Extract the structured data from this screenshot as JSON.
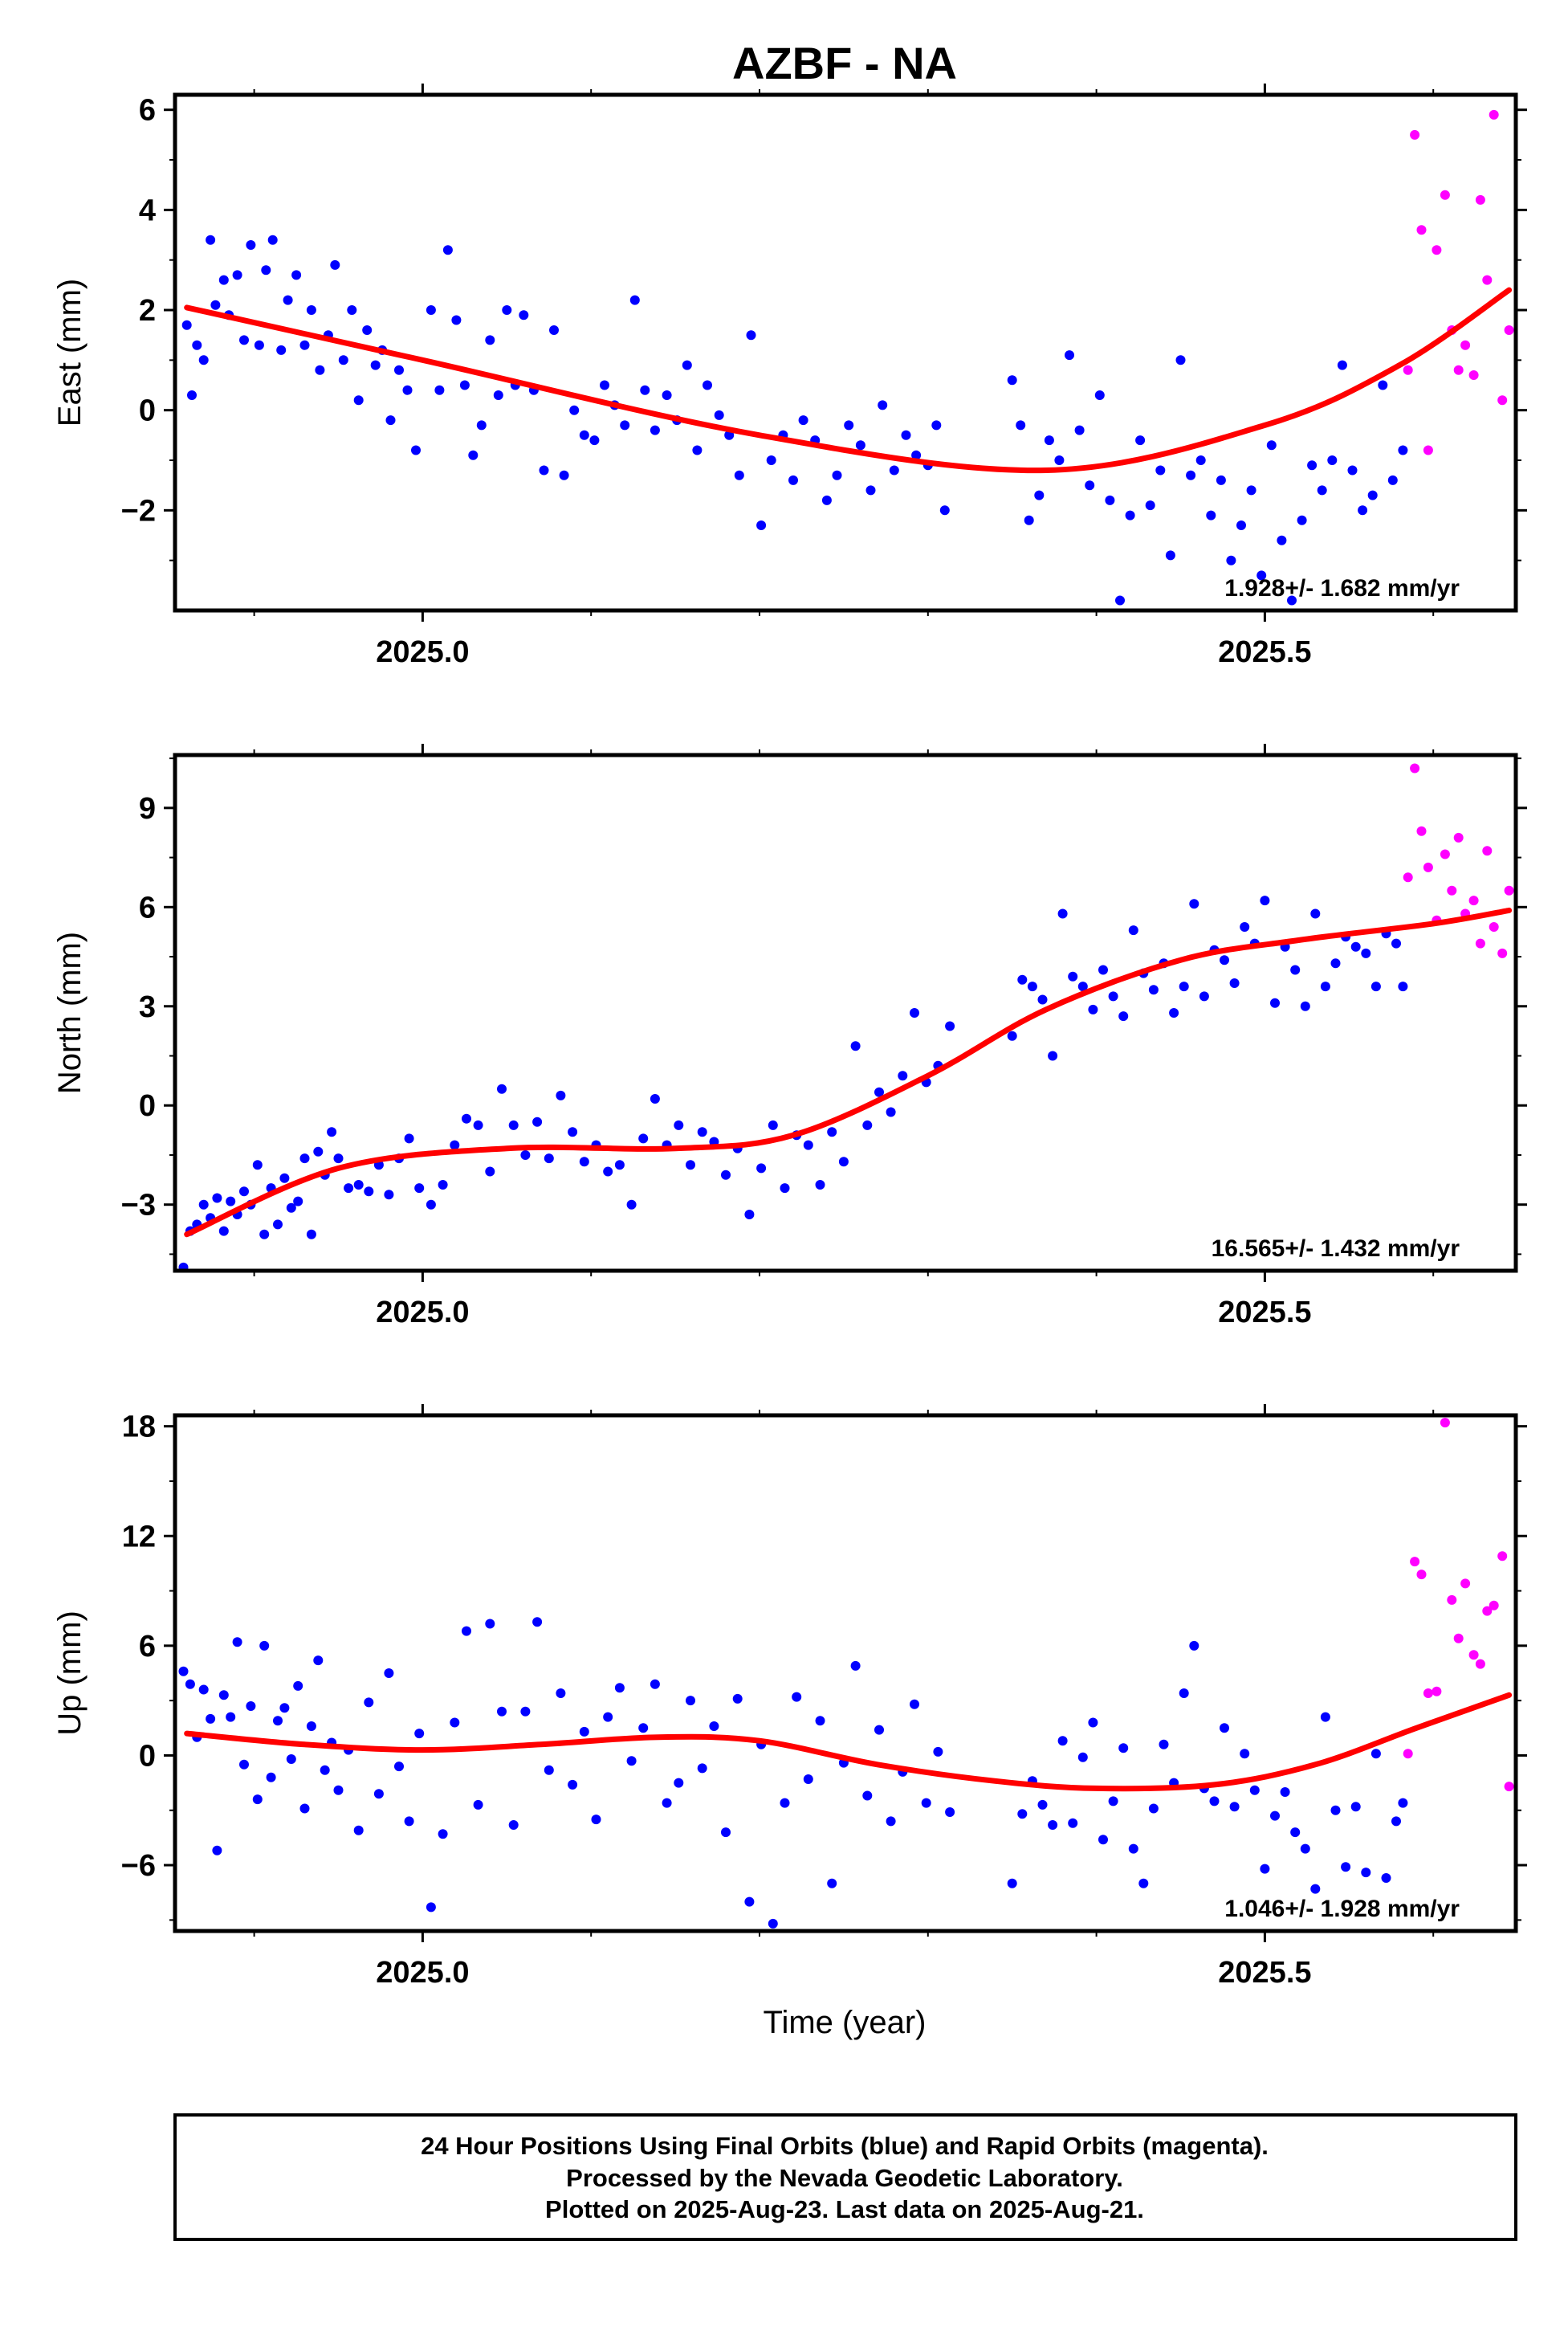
{
  "title": "AZBF - NA",
  "x_label": "Time (year)",
  "footer": {
    "line1": "24 Hour Positions Using Final Orbits (blue) and Rapid Orbits (magenta).",
    "line2": "Processed by the Nevada Geodetic Laboratory.",
    "line3": "Plotted on 2025-Aug-23. Last data on 2025-Aug-21."
  },
  "colors": {
    "final": "#0000ff",
    "rapid": "#ff00ff",
    "fit": "#ff0000",
    "frame": "#000000"
  },
  "chart_data": [
    {
      "type": "scatter",
      "ylabel": "East (mm)",
      "xlim": [
        2024.853,
        2025.649
      ],
      "ylim": [
        -4.0,
        6.3
      ],
      "xticks": [
        2025.0,
        2025.5
      ],
      "xtick_labels": [
        "2025.0",
        "2025.5"
      ],
      "yticks": [
        -2,
        0,
        2,
        4,
        6
      ],
      "ytick_labels": [
        "−2",
        "0",
        "2",
        "4",
        "6"
      ],
      "rate_label": "1.928+/- 1.682 mm/yr",
      "fit": {
        "x": [
          2024.86,
          2025.0,
          2025.2,
          2025.37,
          2025.5,
          2025.58,
          2025.645
        ],
        "y": [
          2.05,
          1.0,
          -0.5,
          -1.2,
          -0.3,
          0.9,
          2.4
        ]
      },
      "series": [
        {
          "orbit": "final",
          "x": [
            2024.86,
            2024.863,
            2024.866,
            2024.87,
            2024.874,
            2024.877,
            2024.882,
            2024.885,
            2024.89,
            2024.894,
            2024.898,
            2024.903,
            2024.907,
            2024.911,
            2024.916,
            2024.92,
            2024.925,
            2024.93,
            2024.934,
            2024.939,
            2024.944,
            2024.948,
            2024.953,
            2024.958,
            2024.962,
            2024.967,
            2024.972,
            2024.976,
            2024.981,
            2024.986,
            2024.991,
            2024.996,
            2025.005,
            2025.01,
            2025.015,
            2025.02,
            2025.025,
            2025.03,
            2025.035,
            2025.04,
            2025.045,
            2025.05,
            2025.055,
            2025.06,
            2025.066,
            2025.072,
            2025.078,
            2025.084,
            2025.09,
            2025.096,
            2025.102,
            2025.108,
            2025.114,
            2025.12,
            2025.126,
            2025.132,
            2025.138,
            2025.145,
            2025.151,
            2025.157,
            2025.163,
            2025.169,
            2025.176,
            2025.182,
            2025.188,
            2025.195,
            2025.201,
            2025.207,
            2025.214,
            2025.22,
            2025.226,
            2025.233,
            2025.24,
            2025.246,
            2025.253,
            2025.26,
            2025.266,
            2025.273,
            2025.28,
            2025.287,
            2025.293,
            2025.3,
            2025.305,
            2025.31,
            2025.35,
            2025.355,
            2025.36,
            2025.366,
            2025.372,
            2025.378,
            2025.384,
            2025.39,
            2025.396,
            2025.402,
            2025.408,
            2025.414,
            2025.42,
            2025.426,
            2025.432,
            2025.438,
            2025.444,
            2025.45,
            2025.456,
            2025.462,
            2025.468,
            2025.474,
            2025.48,
            2025.486,
            2025.492,
            2025.498,
            2025.504,
            2025.51,
            2025.516,
            2025.522,
            2025.528,
            2025.534,
            2025.54,
            2025.546,
            2025.552,
            2025.558,
            2025.564,
            2025.57,
            2025.576,
            2025.582
          ],
          "y": [
            1.7,
            0.3,
            1.3,
            1.0,
            3.4,
            2.1,
            2.6,
            1.9,
            2.7,
            1.4,
            3.3,
            1.3,
            2.8,
            3.4,
            1.2,
            2.2,
            2.7,
            1.3,
            2.0,
            0.8,
            1.5,
            2.9,
            1.0,
            2.0,
            0.2,
            1.6,
            0.9,
            1.2,
            -0.2,
            0.8,
            0.4,
            -0.8,
            2.0,
            0.4,
            3.2,
            1.8,
            0.5,
            -0.9,
            -0.3,
            1.4,
            0.3,
            2.0,
            0.5,
            1.9,
            0.4,
            -1.2,
            1.6,
            -1.3,
            0.0,
            -0.5,
            -0.6,
            0.5,
            0.1,
            -0.3,
            2.2,
            0.4,
            -0.4,
            0.3,
            -0.2,
            0.9,
            -0.8,
            0.5,
            -0.1,
            -0.5,
            -1.3,
            1.5,
            -2.3,
            -1.0,
            -0.5,
            -1.4,
            -0.2,
            -0.6,
            -1.8,
            -1.3,
            -0.3,
            -0.7,
            -1.6,
            0.1,
            -1.2,
            -0.5,
            -0.9,
            -1.1,
            -0.3,
            -2.0,
            0.6,
            -0.3,
            -2.2,
            -1.7,
            -0.6,
            -1.0,
            1.1,
            -0.4,
            -1.5,
            0.3,
            -1.8,
            -3.8,
            -2.1,
            -0.6,
            -1.9,
            -1.2,
            -2.9,
            1.0,
            -1.3,
            -1.0,
            -2.1,
            -1.4,
            -3.0,
            -2.3,
            -1.6,
            -3.3,
            -0.7,
            -2.6,
            -3.8,
            -2.2,
            -1.1,
            -1.6,
            -1.0,
            0.9,
            -1.2,
            -2.0,
            -1.7,
            0.5,
            -1.4,
            -0.8
          ]
        },
        {
          "orbit": "rapid",
          "x": [
            2025.585,
            2025.589,
            2025.593,
            2025.597,
            2025.602,
            2025.607,
            2025.611,
            2025.615,
            2025.619,
            2025.624,
            2025.628,
            2025.632,
            2025.636,
            2025.641,
            2025.645
          ],
          "y": [
            0.8,
            5.5,
            3.6,
            -0.8,
            3.2,
            4.3,
            1.6,
            0.8,
            1.3,
            0.7,
            4.2,
            2.6,
            5.9,
            0.2,
            1.6
          ]
        }
      ]
    },
    {
      "type": "scatter",
      "ylabel": "North (mm)",
      "xlim": [
        2024.853,
        2025.649
      ],
      "ylim": [
        -5.0,
        10.6
      ],
      "xticks": [
        2025.0,
        2025.5
      ],
      "xtick_labels": [
        "2025.0",
        "2025.5"
      ],
      "yticks": [
        -3,
        0,
        3,
        6,
        9
      ],
      "ytick_labels": [
        "−3",
        "0",
        "3",
        "6",
        "9"
      ],
      "rate_label": "16.565+/- 1.432 mm/yr",
      "fit": {
        "x": [
          2024.86,
          2024.95,
          2025.05,
          2025.15,
          2025.22,
          2025.3,
          2025.37,
          2025.45,
          2025.52,
          2025.6,
          2025.645
        ],
        "y": [
          -3.9,
          -1.9,
          -1.3,
          -1.3,
          -0.9,
          0.9,
          2.9,
          4.4,
          5.0,
          5.5,
          5.9
        ]
      },
      "series": [
        {
          "orbit": "final",
          "x": [
            2024.858,
            2024.862,
            2024.866,
            2024.87,
            2024.874,
            2024.878,
            2024.882,
            2024.886,
            2024.89,
            2024.894,
            2024.898,
            2024.902,
            2024.906,
            2024.91,
            2024.914,
            2024.918,
            2024.922,
            2024.926,
            2024.93,
            2024.934,
            2024.938,
            2024.942,
            2024.946,
            2024.95,
            2024.956,
            2024.962,
            2024.968,
            2024.974,
            2024.98,
            2024.986,
            2024.992,
            2024.998,
            2025.005,
            2025.012,
            2025.019,
            2025.026,
            2025.033,
            2025.04,
            2025.047,
            2025.054,
            2025.061,
            2025.068,
            2025.075,
            2025.082,
            2025.089,
            2025.096,
            2025.103,
            2025.11,
            2025.117,
            2025.124,
            2025.131,
            2025.138,
            2025.145,
            2025.152,
            2025.159,
            2025.166,
            2025.173,
            2025.18,
            2025.187,
            2025.194,
            2025.201,
            2025.208,
            2025.215,
            2025.222,
            2025.229,
            2025.236,
            2025.243,
            2025.25,
            2025.257,
            2025.264,
            2025.271,
            2025.278,
            2025.285,
            2025.292,
            2025.299,
            2025.306,
            2025.313,
            2025.35,
            2025.356,
            2025.362,
            2025.368,
            2025.374,
            2025.38,
            2025.386,
            2025.392,
            2025.398,
            2025.404,
            2025.41,
            2025.416,
            2025.422,
            2025.428,
            2025.434,
            2025.44,
            2025.446,
            2025.452,
            2025.458,
            2025.464,
            2025.47,
            2025.476,
            2025.482,
            2025.488,
            2025.494,
            2025.5,
            2025.506,
            2025.512,
            2025.518,
            2025.524,
            2025.53,
            2025.536,
            2025.542,
            2025.548,
            2025.554,
            2025.56,
            2025.566,
            2025.572,
            2025.578,
            2025.582
          ],
          "y": [
            -4.9,
            -3.8,
            -3.6,
            -3.0,
            -3.4,
            -2.8,
            -3.8,
            -2.9,
            -3.3,
            -2.6,
            -3.0,
            -1.8,
            -3.9,
            -2.5,
            -3.6,
            -2.2,
            -3.1,
            -2.9,
            -1.6,
            -3.9,
            -1.4,
            -2.1,
            -0.8,
            -1.6,
            -2.5,
            -2.4,
            -2.6,
            -1.8,
            -2.7,
            -1.6,
            -1.0,
            -2.5,
            -3.0,
            -2.4,
            -1.2,
            -0.4,
            -0.6,
            -2.0,
            0.5,
            -0.6,
            -1.5,
            -0.5,
            -1.6,
            0.3,
            -0.8,
            -1.7,
            -1.2,
            -2.0,
            -1.8,
            -3.0,
            -1.0,
            0.2,
            -1.2,
            -0.6,
            -1.8,
            -0.8,
            -1.1,
            -2.1,
            -1.3,
            -3.3,
            -1.9,
            -0.6,
            -2.5,
            -0.9,
            -1.2,
            -2.4,
            -0.8,
            -1.7,
            1.8,
            -0.6,
            0.4,
            -0.2,
            0.9,
            2.8,
            0.7,
            1.2,
            2.4,
            2.1,
            3.8,
            3.6,
            3.2,
            1.5,
            5.8,
            3.9,
            3.6,
            2.9,
            4.1,
            3.3,
            2.7,
            5.3,
            4.0,
            3.5,
            4.3,
            2.8,
            3.6,
            6.1,
            3.3,
            4.7,
            4.4,
            3.7,
            5.4,
            4.9,
            6.2,
            3.1,
            4.8,
            4.1,
            3.0,
            5.8,
            3.6,
            4.3,
            5.1,
            4.8,
            4.6,
            3.6,
            5.2,
            4.9,
            3.6
          ]
        },
        {
          "orbit": "rapid",
          "x": [
            2025.585,
            2025.589,
            2025.593,
            2025.597,
            2025.602,
            2025.607,
            2025.611,
            2025.615,
            2025.619,
            2025.624,
            2025.628,
            2025.632,
            2025.636,
            2025.641,
            2025.645
          ],
          "y": [
            6.9,
            10.2,
            8.3,
            7.2,
            5.6,
            7.6,
            6.5,
            8.1,
            5.8,
            6.2,
            4.9,
            7.7,
            5.4,
            4.6,
            6.5
          ]
        }
      ]
    },
    {
      "type": "scatter",
      "ylabel": "Up (mm)",
      "xlim": [
        2024.853,
        2025.649
      ],
      "ylim": [
        -9.6,
        18.6
      ],
      "xticks": [
        2025.0,
        2025.5
      ],
      "xtick_labels": [
        "2025.0",
        "2025.5"
      ],
      "yticks": [
        -6,
        0,
        6,
        12,
        18
      ],
      "ytick_labels": [
        "−6",
        "0",
        "6",
        "12",
        "18"
      ],
      "rate_label": "1.046+/- 1.928 mm/yr",
      "fit": {
        "x": [
          2024.86,
          2024.93,
          2025.0,
          2025.07,
          2025.14,
          2025.2,
          2025.27,
          2025.34,
          2025.4,
          2025.47,
          2025.53,
          2025.59,
          2025.645
        ],
        "y": [
          1.2,
          0.6,
          0.3,
          0.6,
          1.0,
          0.8,
          -0.5,
          -1.4,
          -1.8,
          -1.6,
          -0.5,
          1.5,
          3.3
        ]
      },
      "series": [
        {
          "orbit": "final",
          "x": [
            2024.858,
            2024.862,
            2024.866,
            2024.87,
            2024.874,
            2024.878,
            2024.882,
            2024.886,
            2024.89,
            2024.894,
            2024.898,
            2024.902,
            2024.906,
            2024.91,
            2024.914,
            2024.918,
            2024.922,
            2024.926,
            2024.93,
            2024.934,
            2024.938,
            2024.942,
            2024.946,
            2024.95,
            2024.956,
            2024.962,
            2024.968,
            2024.974,
            2024.98,
            2024.986,
            2024.992,
            2024.998,
            2025.005,
            2025.012,
            2025.019,
            2025.026,
            2025.033,
            2025.04,
            2025.047,
            2025.054,
            2025.061,
            2025.068,
            2025.075,
            2025.082,
            2025.089,
            2025.096,
            2025.103,
            2025.11,
            2025.117,
            2025.124,
            2025.131,
            2025.138,
            2025.145,
            2025.152,
            2025.159,
            2025.166,
            2025.173,
            2025.18,
            2025.187,
            2025.194,
            2025.201,
            2025.208,
            2025.215,
            2025.222,
            2025.229,
            2025.236,
            2025.243,
            2025.25,
            2025.257,
            2025.264,
            2025.271,
            2025.278,
            2025.285,
            2025.292,
            2025.299,
            2025.306,
            2025.313,
            2025.35,
            2025.356,
            2025.362,
            2025.368,
            2025.374,
            2025.38,
            2025.386,
            2025.392,
            2025.398,
            2025.404,
            2025.41,
            2025.416,
            2025.422,
            2025.428,
            2025.434,
            2025.44,
            2025.446,
            2025.452,
            2025.458,
            2025.464,
            2025.47,
            2025.476,
            2025.482,
            2025.488,
            2025.494,
            2025.5,
            2025.506,
            2025.512,
            2025.518,
            2025.524,
            2025.53,
            2025.536,
            2025.542,
            2025.548,
            2025.554,
            2025.56,
            2025.566,
            2025.572,
            2025.578,
            2025.582
          ],
          "y": [
            4.6,
            3.9,
            1.0,
            3.6,
            2.0,
            -5.2,
            3.3,
            2.1,
            6.2,
            -0.5,
            2.7,
            -2.4,
            6.0,
            -1.2,
            1.9,
            2.6,
            -0.2,
            3.8,
            -2.9,
            1.6,
            5.2,
            -0.8,
            0.7,
            -1.9,
            0.3,
            -4.1,
            2.9,
            -2.1,
            4.5,
            -0.6,
            -3.6,
            1.2,
            -8.3,
            -4.3,
            1.8,
            6.8,
            -2.7,
            7.2,
            2.4,
            -3.8,
            2.4,
            7.3,
            -0.8,
            3.4,
            -1.6,
            1.3,
            -3.5,
            2.1,
            3.7,
            -0.3,
            1.5,
            3.9,
            -2.6,
            -1.5,
            3.0,
            -0.7,
            1.6,
            -4.2,
            3.1,
            -8.0,
            0.6,
            -9.2,
            -2.6,
            3.2,
            -1.3,
            1.9,
            -7.0,
            -0.4,
            4.9,
            -2.2,
            1.4,
            -3.6,
            -0.9,
            2.8,
            -2.6,
            0.2,
            -3.1,
            -7.0,
            -3.2,
            -1.4,
            -2.7,
            -3.8,
            0.8,
            -3.7,
            -0.1,
            1.8,
            -4.6,
            -2.5,
            0.4,
            -5.1,
            -7.0,
            -2.9,
            0.6,
            -1.5,
            3.4,
            6.0,
            -1.8,
            -2.5,
            1.5,
            -2.8,
            0.1,
            -1.9,
            -6.2,
            -3.3,
            -2.0,
            -4.2,
            -5.1,
            -7.3,
            2.1,
            -3.0,
            -6.1,
            -2.8,
            -6.4,
            0.1,
            -6.7,
            -3.6,
            -2.6
          ]
        },
        {
          "orbit": "rapid",
          "x": [
            2025.585,
            2025.589,
            2025.593,
            2025.597,
            2025.602,
            2025.607,
            2025.611,
            2025.615,
            2025.619,
            2025.624,
            2025.628,
            2025.632,
            2025.636,
            2025.641,
            2025.645
          ],
          "y": [
            0.1,
            10.6,
            9.9,
            3.4,
            3.5,
            18.2,
            8.5,
            6.4,
            9.4,
            5.5,
            5.0,
            7.9,
            8.2,
            10.9,
            -1.7
          ]
        }
      ]
    }
  ]
}
